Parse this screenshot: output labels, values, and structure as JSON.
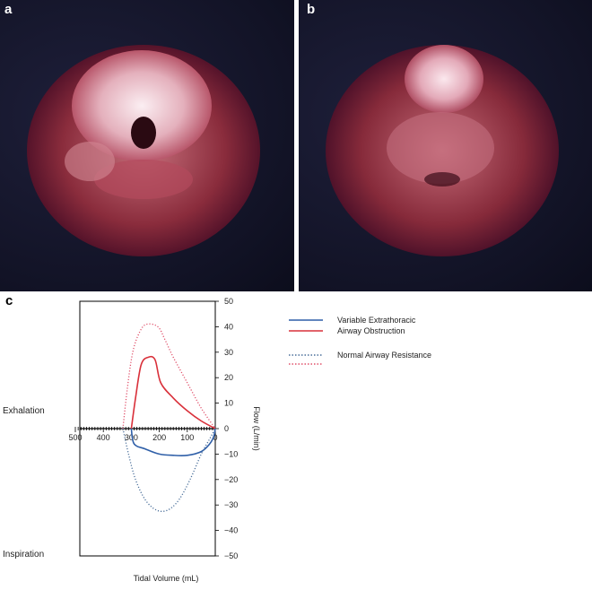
{
  "panels": [
    {
      "label": "a",
      "description_icon": "larynx-photo-open-airway"
    },
    {
      "label": "b",
      "description_icon": "larynx-photo-obstructed-airway"
    },
    {
      "label": "c"
    }
  ],
  "colors": {
    "variable_extrathoracic": "#2f5fa8",
    "airway_obstruction": "#d9303a",
    "normal_blue": "#4a6f9a",
    "normal_red": "#e0506a"
  },
  "chart_data": {
    "type": "line",
    "title": "",
    "xlabel": "Tidal Volume (mL)",
    "ylabel": "Flow (L/min)",
    "xlim": [
      500,
      0
    ],
    "ylim": [
      -50,
      50
    ],
    "x_ticks": [
      "500",
      "400",
      "300",
      "200",
      "100",
      "0"
    ],
    "y_ticks": [
      "50",
      "40",
      "30",
      "20",
      "10",
      "0",
      "−10",
      "−20",
      "−30",
      "−40",
      "−50"
    ],
    "side_labels": {
      "upper": "Exhalation",
      "lower": "Inspiration"
    },
    "legend": [
      {
        "group": "Variable Extrathoracic",
        "lines": [
          "Variable Extrathoracic",
          "Airway Obstruction"
        ]
      },
      {
        "group": "Normal Airway Resistance",
        "lines": [
          "Normal Airway Resistance"
        ]
      }
    ],
    "series": [
      {
        "name": "Variable Extrathoracic Airway Obstruction (exhalation)",
        "color": "#d9303a",
        "style": "solid",
        "points": [
          [
            300,
            0
          ],
          [
            285,
            12
          ],
          [
            265,
            25
          ],
          [
            240,
            28
          ],
          [
            215,
            27
          ],
          [
            195,
            18
          ],
          [
            150,
            12
          ],
          [
            100,
            7
          ],
          [
            50,
            3
          ],
          [
            0,
            0
          ]
        ]
      },
      {
        "name": "Variable Extrathoracic Airway Obstruction (inspiration)",
        "color": "#2f5fa8",
        "style": "solid",
        "points": [
          [
            300,
            0
          ],
          [
            290,
            -6
          ],
          [
            250,
            -8
          ],
          [
            200,
            -10
          ],
          [
            150,
            -10.5
          ],
          [
            100,
            -10.5
          ],
          [
            50,
            -9
          ],
          [
            20,
            -6
          ],
          [
            5,
            -3
          ],
          [
            0,
            0
          ]
        ]
      },
      {
        "name": "Normal Airway Resistance (exhalation)",
        "color": "#e0506a",
        "style": "dotted",
        "points": [
          [
            330,
            0
          ],
          [
            315,
            15
          ],
          [
            295,
            30
          ],
          [
            270,
            38
          ],
          [
            245,
            41
          ],
          [
            205,
            40
          ],
          [
            180,
            35
          ],
          [
            150,
            28
          ],
          [
            100,
            18
          ],
          [
            50,
            8
          ],
          [
            0,
            0
          ]
        ]
      },
      {
        "name": "Normal Airway Resistance (inspiration)",
        "color": "#4a6f9a",
        "style": "dotted",
        "points": [
          [
            330,
            0
          ],
          [
            310,
            -10
          ],
          [
            285,
            -20
          ],
          [
            250,
            -28
          ],
          [
            210,
            -32
          ],
          [
            170,
            -32
          ],
          [
            130,
            -28
          ],
          [
            90,
            -20
          ],
          [
            50,
            -10
          ],
          [
            20,
            -4
          ],
          [
            0,
            0
          ]
        ]
      }
    ]
  }
}
